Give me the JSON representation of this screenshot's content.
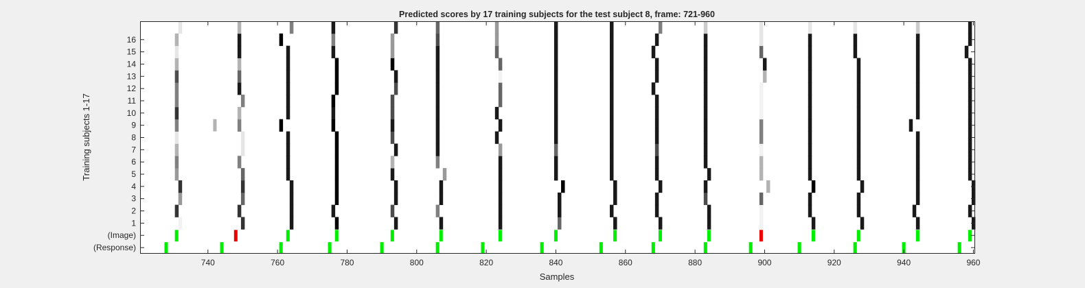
{
  "chart_data": {
    "type": "heatmap",
    "title": "Predicted scores by 17 training subjects for the test subject 8, frame: 721-960",
    "xlabel": "Samples",
    "ylabel": "Training subjects 1-17",
    "xlim": [
      721,
      960
    ],
    "xticks": [
      740,
      760,
      780,
      800,
      820,
      840,
      860,
      880,
      900,
      920,
      940,
      960
    ],
    "yrows": [
      "(Response)",
      "(Image)",
      "1",
      "2",
      "3",
      "4",
      "5",
      "6",
      "7",
      "8",
      "9",
      "10",
      "11",
      "12",
      "13",
      "14",
      "15",
      "16",
      ""
    ],
    "colormap": "gray (white = 0, black = 1)",
    "colors": {
      "correct": "#00ee00",
      "error": "#ee0000",
      "background": "#ffffff"
    },
    "response_markers": [
      728,
      744,
      761,
      775,
      790,
      806,
      819,
      836,
      853,
      868,
      883,
      896,
      910,
      926,
      940,
      956
    ],
    "image_markers": [
      {
        "x": 731,
        "status": "correct"
      },
      {
        "x": 748,
        "status": "error"
      },
      {
        "x": 763,
        "status": "correct"
      },
      {
        "x": 777,
        "status": "correct"
      },
      {
        "x": 793,
        "status": "correct"
      },
      {
        "x": 807,
        "status": "correct"
      },
      {
        "x": 824,
        "status": "correct"
      },
      {
        "x": 840,
        "status": "correct"
      },
      {
        "x": 857,
        "status": "correct"
      },
      {
        "x": 870,
        "status": "correct"
      },
      {
        "x": 884,
        "status": "correct"
      },
      {
        "x": 899,
        "status": "error"
      },
      {
        "x": 914,
        "status": "correct"
      },
      {
        "x": 927,
        "status": "correct"
      },
      {
        "x": 944,
        "status": "correct"
      },
      {
        "x": 959,
        "status": "correct"
      }
    ],
    "score_columns": [
      {
        "x": [
          732,
          731,
          732,
          732,
          731,
          731,
          731,
          731,
          731,
          731,
          731,
          731,
          731,
          731,
          731,
          731,
          732,
          732
        ],
        "v": [
          0.05,
          0.8,
          0.4,
          0.8,
          0.4,
          0.5,
          0.3,
          0.1,
          0.5,
          0.8,
          0.5,
          0.5,
          0.7,
          0.3,
          0.1,
          0.3,
          0.1,
          0.6
        ]
      },
      {
        "x": [
          750,
          749,
          750,
          750,
          750,
          749,
          750,
          750,
          749,
          749,
          750,
          749,
          749,
          749,
          749,
          749,
          749,
          750
        ],
        "v": [
          0.8,
          0.8,
          0.6,
          0.8,
          0.6,
          0.5,
          0.1,
          0.1,
          0.5,
          0.3,
          0.5,
          0.9,
          0.6,
          0.3,
          0.9,
          0.9,
          0.3,
          0.6
        ]
      },
      {
        "x": [
          764,
          764,
          764,
          764,
          763,
          763,
          763,
          763,
          761,
          763,
          763,
          763,
          763,
          763,
          763,
          761,
          764,
          764
        ],
        "v": [
          0.9,
          0.9,
          0.9,
          0.9,
          0.9,
          0.9,
          0.9,
          0.9,
          1,
          0.9,
          0.9,
          0.9,
          0.9,
          0.9,
          0.9,
          1,
          0.5,
          0.9
        ]
      },
      {
        "x": [
          777,
          776,
          777,
          777,
          777,
          777,
          777,
          777,
          776,
          776,
          776,
          777,
          777,
          777,
          776,
          776,
          776,
          777
        ],
        "v": [
          1,
          0.9,
          1,
          1,
          1,
          1,
          1,
          1,
          1,
          0.9,
          1,
          1,
          1,
          1,
          0.9,
          0.5,
          0.9,
          1
        ]
      },
      {
        "x": [
          794,
          793,
          794,
          794,
          793,
          793,
          794,
          793,
          793,
          793,
          793,
          794,
          794,
          793,
          793,
          793,
          794,
          794
        ],
        "v": [
          0.9,
          0.7,
          0.9,
          0.9,
          0.9,
          0.3,
          0.9,
          0.7,
          0.9,
          0.7,
          0.7,
          0.7,
          0.9,
          1,
          0.4,
          0.4,
          0.8,
          0.8
        ]
      },
      {
        "x": [
          807,
          806,
          807,
          807,
          808,
          806,
          806,
          806,
          806,
          806,
          806,
          806,
          806,
          806,
          806,
          806,
          806,
          806
        ],
        "v": [
          0.9,
          0.5,
          0.9,
          0.9,
          0.4,
          0.5,
          0.9,
          0.9,
          0.9,
          0.9,
          0.9,
          0.9,
          0.9,
          0.9,
          0.9,
          0.7,
          0.6,
          0.5
        ]
      },
      {
        "x": [
          824,
          824,
          824,
          824,
          824,
          824,
          824,
          823,
          824,
          823,
          824,
          824,
          824,
          824,
          823,
          823,
          823,
          824
        ],
        "v": [
          0.9,
          0.9,
          0.9,
          0.9,
          0.9,
          0.9,
          0.4,
          0.9,
          0.9,
          0.9,
          0.6,
          0.6,
          0.05,
          0.6,
          0.6,
          0.4,
          0.4,
          0.9
        ]
      },
      {
        "x": [
          841,
          841,
          841,
          842,
          840,
          840,
          840,
          840,
          840,
          840,
          840,
          840,
          840,
          840,
          840,
          840,
          840,
          840
        ],
        "v": [
          0.6,
          0.9,
          0.9,
          1,
          0.9,
          0.9,
          0.6,
          0.9,
          0.9,
          0.9,
          0.9,
          0.9,
          0.9,
          0.9,
          0.9,
          0.9,
          0.9,
          0.9
        ]
      },
      {
        "x": [
          857,
          856,
          857,
          857,
          856,
          856,
          856,
          856,
          856,
          856,
          856,
          856,
          856,
          856,
          856,
          856,
          856,
          857
        ],
        "v": [
          0.9,
          0.9,
          0.9,
          0.9,
          0.9,
          0.9,
          0.9,
          0.9,
          0.9,
          0.9,
          0.9,
          0.9,
          0.9,
          0.9,
          0.9,
          0.9,
          0.9,
          0.9
        ]
      },
      {
        "x": [
          870,
          869,
          869,
          870,
          869,
          869,
          869,
          869,
          869,
          869,
          869,
          868,
          869,
          869,
          868,
          869,
          870,
          869
        ],
        "v": [
          0.9,
          0.9,
          0.9,
          0.9,
          0.9,
          0.9,
          0.7,
          0.9,
          0.9,
          0.9,
          0.9,
          0.9,
          0.9,
          0.9,
          0.9,
          0.9,
          0.5,
          0.9
        ]
      },
      {
        "x": [
          884,
          884,
          883,
          883,
          884,
          883,
          883,
          883,
          883,
          883,
          883,
          883,
          883,
          883,
          883,
          883,
          883,
          884
        ],
        "v": [
          0.9,
          0.9,
          0.7,
          0.9,
          0.9,
          0.9,
          0.9,
          0.9,
          0.9,
          0.9,
          0.9,
          0.9,
          0.9,
          0.9,
          0.9,
          0.9,
          0.2,
          0.9
        ]
      },
      {
        "x": [
          899,
          899,
          899,
          901,
          899,
          899,
          899,
          899,
          899,
          899,
          899,
          899,
          900,
          900,
          899,
          899,
          899,
          899
        ],
        "v": [
          0.05,
          0.05,
          0.6,
          0.3,
          0.3,
          0.3,
          0.05,
          0.5,
          0.5,
          0.05,
          0.05,
          0.05,
          0.3,
          0.9,
          0.6,
          0.1,
          0.1,
          0.4
        ]
      },
      {
        "x": [
          914,
          913,
          913,
          914,
          913,
          913,
          913,
          913,
          913,
          913,
          913,
          913,
          913,
          913,
          913,
          913,
          913,
          913
        ],
        "v": [
          0.9,
          0.9,
          0.9,
          1,
          0.9,
          0.9,
          0.9,
          0.9,
          0.9,
          0.9,
          0.9,
          0.9,
          0.9,
          0.9,
          0.9,
          0.9,
          0.1,
          0.9
        ]
      },
      {
        "x": [
          928,
          927,
          927,
          928,
          927,
          927,
          927,
          927,
          927,
          927,
          927,
          927,
          927,
          927,
          926,
          926,
          926,
          927
        ],
        "v": [
          0.9,
          0.9,
          0.9,
          0.9,
          0.9,
          0.9,
          0.9,
          0.9,
          0.9,
          0.9,
          0.9,
          0.9,
          0.9,
          0.9,
          0.9,
          0.9,
          0.1,
          0.9
        ]
      },
      {
        "x": [
          944,
          943,
          944,
          944,
          944,
          944,
          944,
          944,
          942,
          944,
          944,
          944,
          944,
          944,
          944,
          944,
          944,
          944
        ],
        "v": [
          0.9,
          0.9,
          0.9,
          0.9,
          0.9,
          0.9,
          0.9,
          0.9,
          0.9,
          0.9,
          0.9,
          0.9,
          0.9,
          0.9,
          0.9,
          0.9,
          0.2,
          0.9
        ]
      },
      {
        "x": [
          960,
          959,
          960,
          960,
          959,
          959,
          959,
          959,
          959,
          959,
          959,
          959,
          959,
          959,
          958,
          959,
          959,
          959
        ],
        "v": [
          0.9,
          0.9,
          0.9,
          0.9,
          0.9,
          0.9,
          0.9,
          0.9,
          0.9,
          0.9,
          0.9,
          0.9,
          0.9,
          0.9,
          0.9,
          0.9,
          0.9,
          0.9
        ]
      }
    ],
    "extra_cells": [
      {
        "x": 742,
        "row": 9,
        "v": 0.3
      }
    ],
    "grid": false,
    "legend": "none"
  }
}
